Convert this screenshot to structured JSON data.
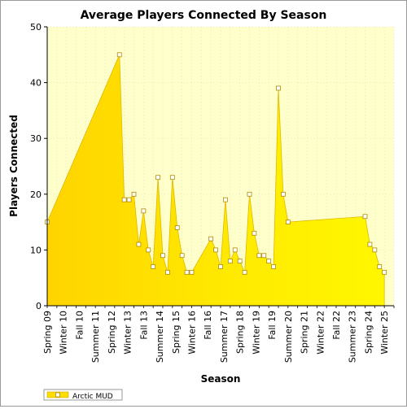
{
  "chart_data": {
    "type": "area",
    "title": "Average Players Connected By Season",
    "xlabel": "Season",
    "ylabel": "Players Connected",
    "ylim": [
      0,
      50
    ],
    "yticks": [
      0,
      10,
      20,
      30,
      40,
      50
    ],
    "grid": true,
    "legend_position": "bottom-left",
    "xticks": [
      "Spring 09",
      "Winter 10",
      "Fall 10",
      "Summer 11",
      "Spring 12",
      "Winter 13",
      "Fall 13",
      "Summer 14",
      "Spring 15",
      "Winter 16",
      "Fall 16",
      "Summer 17",
      "Spring 18",
      "Winter 19",
      "Fall 19",
      "Summer 20",
      "Spring 21",
      "Winter 22",
      "Fall 22",
      "Summer 23",
      "Spring 24",
      "Winter 25"
    ],
    "series": [
      {
        "name": "Arctic MUD",
        "color": "#ffdd00",
        "points": [
          {
            "x": 0.0,
            "y": 15
          },
          {
            "x": 7.5,
            "y": 45
          },
          {
            "x": 8.0,
            "y": 19
          },
          {
            "x": 8.5,
            "y": 19
          },
          {
            "x": 9.0,
            "y": 20
          },
          {
            "x": 9.5,
            "y": 11
          },
          {
            "x": 10.0,
            "y": 17
          },
          {
            "x": 10.5,
            "y": 10
          },
          {
            "x": 11.0,
            "y": 7
          },
          {
            "x": 11.5,
            "y": 23
          },
          {
            "x": 12.0,
            "y": 9
          },
          {
            "x": 12.5,
            "y": 6
          },
          {
            "x": 13.0,
            "y": 23
          },
          {
            "x": 13.5,
            "y": 14
          },
          {
            "x": 14.0,
            "y": 9
          },
          {
            "x": 14.5,
            "y": 6
          },
          {
            "x": 15.0,
            "y": 6
          },
          {
            "x": 17.0,
            "y": 12
          },
          {
            "x": 17.5,
            "y": 10
          },
          {
            "x": 18.0,
            "y": 7
          },
          {
            "x": 18.5,
            "y": 19
          },
          {
            "x": 19.0,
            "y": 8
          },
          {
            "x": 19.5,
            "y": 10
          },
          {
            "x": 20.0,
            "y": 8
          },
          {
            "x": 20.5,
            "y": 6
          },
          {
            "x": 21.0,
            "y": 20
          },
          {
            "x": 21.5,
            "y": 13
          },
          {
            "x": 22.0,
            "y": 9
          },
          {
            "x": 22.5,
            "y": 9
          },
          {
            "x": 23.0,
            "y": 8
          },
          {
            "x": 23.5,
            "y": 7
          },
          {
            "x": 24.0,
            "y": 39
          },
          {
            "x": 24.5,
            "y": 20
          },
          {
            "x": 25.0,
            "y": 15
          },
          {
            "x": 33.0,
            "y": 16
          },
          {
            "x": 33.5,
            "y": 11
          },
          {
            "x": 34.0,
            "y": 10
          },
          {
            "x": 34.5,
            "y": 7
          },
          {
            "x": 35.0,
            "y": 6
          }
        ]
      }
    ]
  }
}
